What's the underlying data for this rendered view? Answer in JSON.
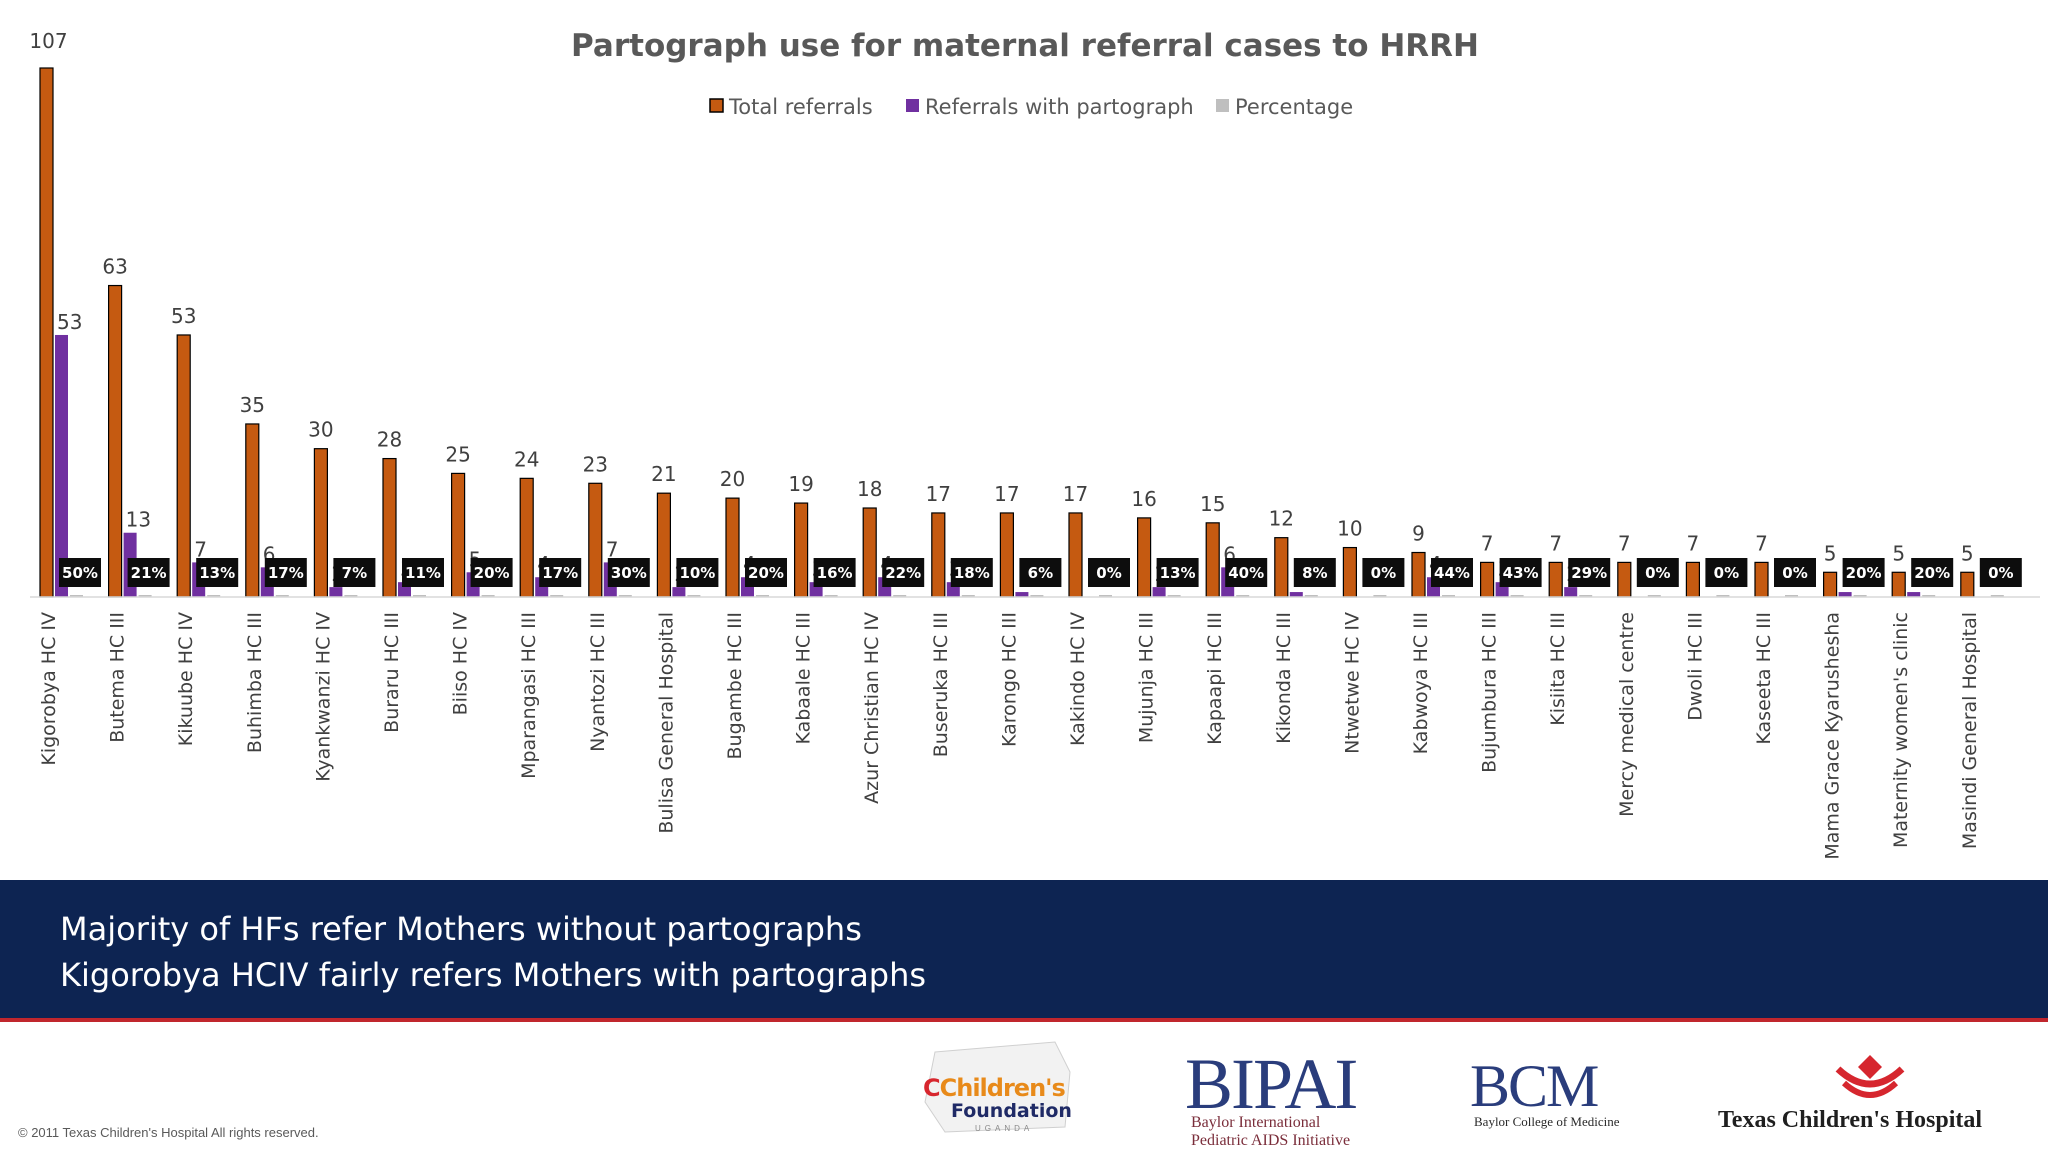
{
  "chart_data": {
    "type": "bar",
    "title": "Partograph use for maternal referral cases to HRRH",
    "legend_position": "top-center",
    "ylim": [
      0,
      110
    ],
    "categories": [
      "Kigorobya HC IV",
      "Butema HC III",
      "Kikuube  HC IV",
      "Buhimba HC III",
      "Kyankwanzi HC IV",
      "Buraru HC III",
      "Biiso HC IV",
      "Mparangasi HC III",
      "Nyantozi HC III",
      "Bulisa General Hospital",
      "Bugambe HC III",
      "Kabaale HC III",
      "Azur Christian  HC IV",
      "Buseruka HC III",
      "Karongo HC III",
      "Kakindo HC IV",
      "Mujunja HC III",
      "Kapaapi HC III",
      "Kikonda HC III",
      "Ntwetwe HC IV",
      "Kabwoya HC III",
      "Bujumbura HC III",
      "Kisiita HC III",
      "Mercy medical centre",
      "Dwoli HC III",
      "Kaseeta HC III",
      "Mama Grace Kyarushesha",
      "Maternity women's clinic",
      "Masindi General Hospital"
    ],
    "series": [
      {
        "name": "Total referrals",
        "color": "#c55a11",
        "values": [
          107,
          63,
          53,
          35,
          30,
          28,
          25,
          24,
          23,
          21,
          20,
          19,
          18,
          17,
          17,
          17,
          16,
          15,
          12,
          10,
          9,
          7,
          7,
          7,
          7,
          7,
          5,
          5,
          5
        ]
      },
      {
        "name": "Referrals with partograph",
        "color": "#7030a0",
        "values": [
          53,
          13,
          7,
          6,
          2,
          3,
          5,
          4,
          7,
          2,
          4,
          3,
          4,
          3,
          1,
          0,
          2,
          6,
          1,
          0,
          4,
          3,
          2,
          0,
          0,
          0,
          1,
          1,
          0
        ]
      },
      {
        "name": "Percentage",
        "color": "#bfbfbf",
        "values": [
          "50%",
          "21%",
          "13%",
          "17%",
          "7%",
          "11%",
          "20%",
          "17%",
          "30%",
          "10%",
          "20%",
          "16%",
          "22%",
          "18%",
          "6%",
          "0%",
          "13%",
          "40%",
          "8%",
          "0%",
          "44%",
          "43%",
          "29%",
          "0%",
          "0%",
          "0%",
          "20%",
          "20%",
          "0%"
        ]
      }
    ]
  },
  "banner": {
    "line1": "Majority of HFs refer Mothers without partographs",
    "line2": "Kigorobya HCIV fairly refers Mothers with partographs"
  },
  "footer": {
    "copyright": "© 2011 Texas Children's Hospital All rights reserved.",
    "logos": {
      "childrens_foundation_line1": "Children's",
      "childrens_foundation_line2": "Foundation",
      "childrens_foundation_line3": "UGANDA",
      "bipai_name": "BIPAI",
      "bipai_tagline_1": "Baylor International",
      "bipai_tagline_2": "Pediatric AIDS Initiative",
      "bcm_name": "BCM",
      "bcm_tagline": "Baylor College of Medicine",
      "tch_name": "Texas Children's Hospital"
    }
  }
}
